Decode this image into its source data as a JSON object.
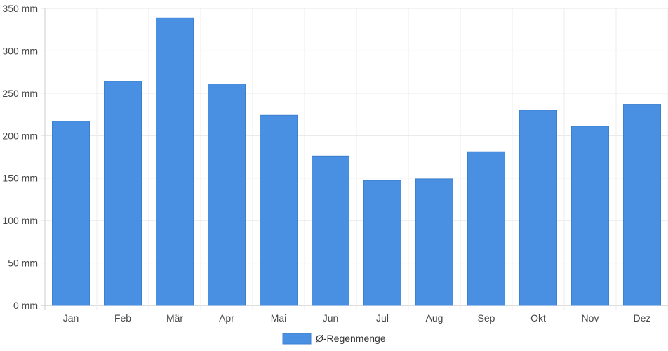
{
  "chart_data": {
    "type": "bar",
    "categories": [
      "Jan",
      "Feb",
      "Mär",
      "Apr",
      "Mai",
      "Jun",
      "Jul",
      "Aug",
      "Sep",
      "Okt",
      "Nov",
      "Dez"
    ],
    "series": [
      {
        "name": "Ø-Regenmenge",
        "values": [
          217,
          264,
          339,
          261,
          224,
          176,
          147,
          149,
          181,
          230,
          211,
          237
        ],
        "color": "#4a90e2"
      }
    ],
    "y_ticks": [
      "0 mm",
      "50 mm",
      "100 mm",
      "150 mm",
      "200 mm",
      "250 mm",
      "300 mm",
      "350 mm"
    ],
    "ylim": [
      0,
      350
    ],
    "grid": true,
    "legend_position": "bottom-center"
  }
}
